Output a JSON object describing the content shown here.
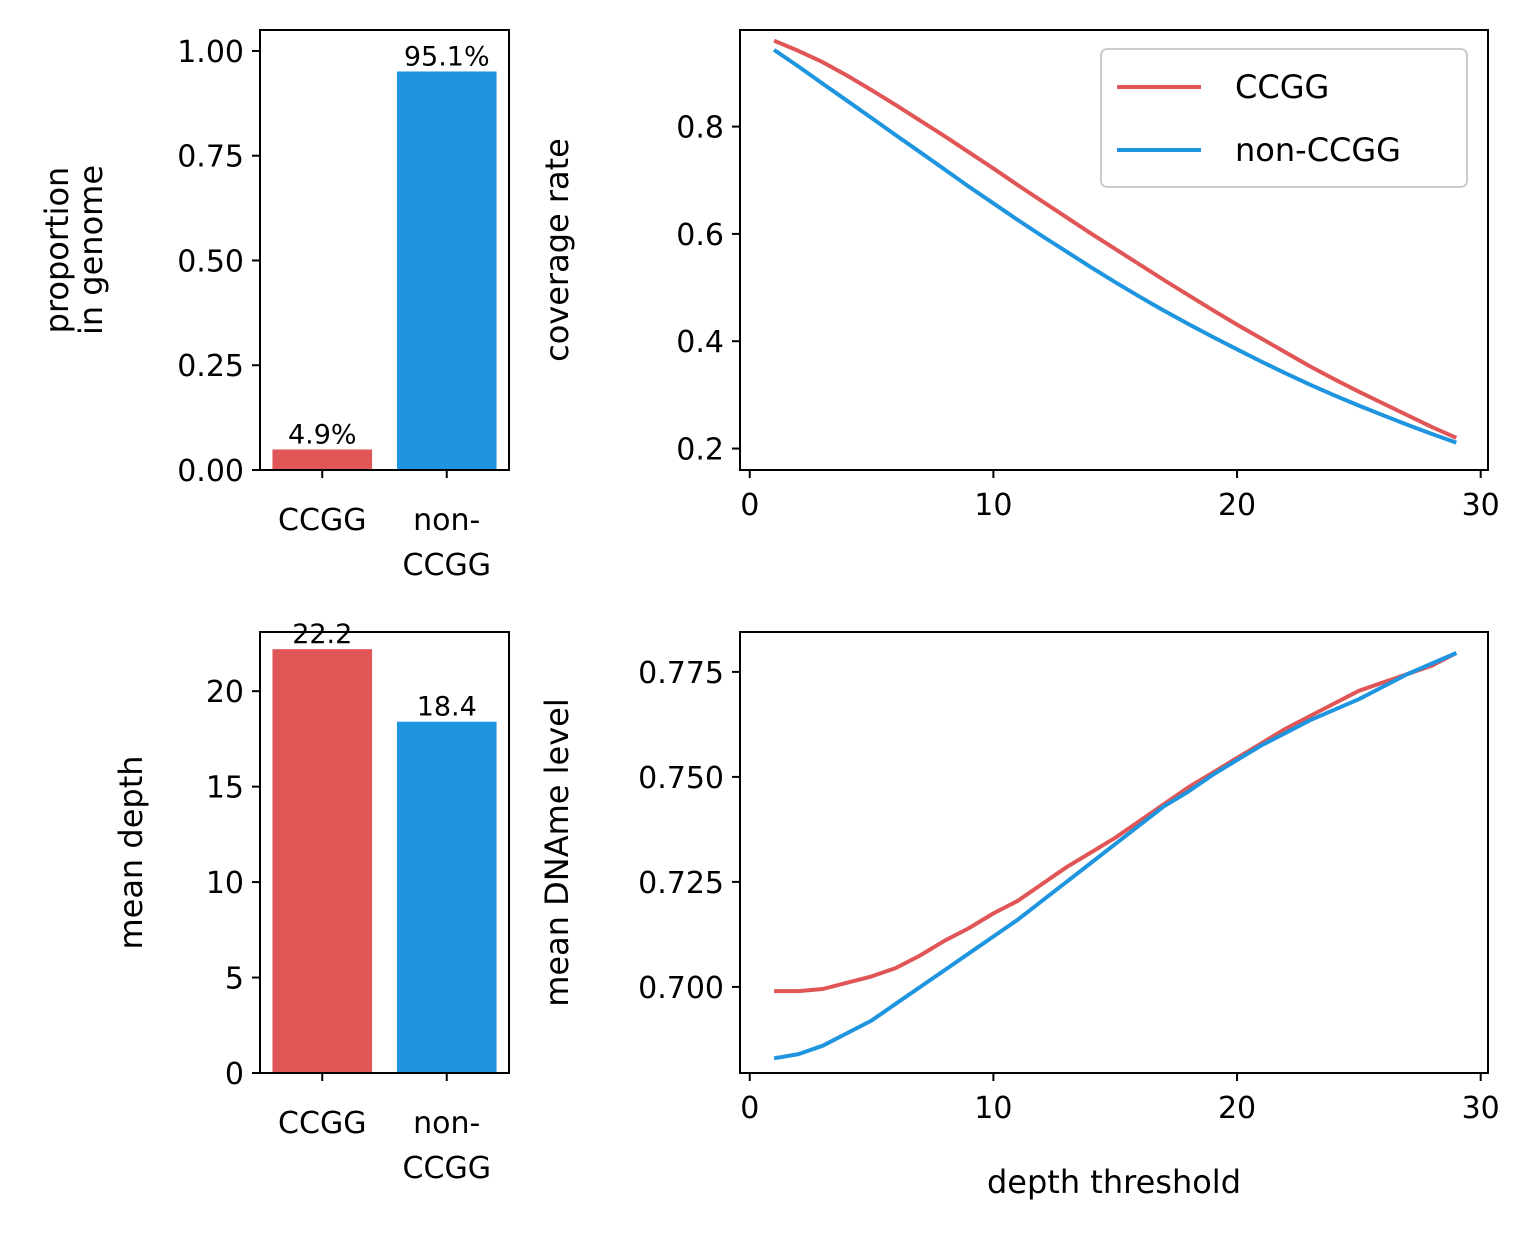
{
  "colors": {
    "ccgg": "#e05555",
    "nonccgg": "#1f95df"
  },
  "chart_data": [
    {
      "id": "proportion",
      "type": "bar",
      "categories": [
        "CCGG",
        "non-\nCCGG"
      ],
      "values": [
        0.049,
        0.951
      ],
      "value_labels": [
        "4.9%",
        "95.1%"
      ],
      "ylabel": [
        "proportion",
        "in genome"
      ],
      "ylim": [
        0,
        1.05
      ],
      "yticks": [
        0,
        0.25,
        0.5,
        0.75,
        1.0
      ],
      "ytick_labels": [
        "0.00",
        "0.25",
        "0.50",
        "0.75",
        "1.00"
      ],
      "bar_colors": [
        "#e05555",
        "#1f95df"
      ]
    },
    {
      "id": "coverage",
      "type": "line",
      "xlabel": "",
      "ylabel": "coverage rate",
      "xlim": [
        -0.4,
        30.3
      ],
      "ylim": [
        0.16,
        0.98
      ],
      "xticks": [
        0,
        10,
        20,
        30
      ],
      "yticks": [
        0.2,
        0.4,
        0.6,
        0.8
      ],
      "ytick_labels": [
        "0.2",
        "0.4",
        "0.6",
        "0.8"
      ],
      "legend": {
        "position": "top-right"
      },
      "x": [
        1,
        2,
        3,
        4,
        5,
        6,
        7,
        8,
        9,
        10,
        11,
        12,
        13,
        14,
        15,
        16,
        17,
        18,
        19,
        20,
        21,
        22,
        23,
        24,
        25,
        26,
        27,
        28,
        29
      ],
      "series": [
        {
          "name": "CCGG",
          "color": "#e05555",
          "values": [
            0.96,
            0.941,
            0.92,
            0.895,
            0.868,
            0.84,
            0.811,
            0.782,
            0.752,
            0.722,
            0.691,
            0.661,
            0.631,
            0.601,
            0.572,
            0.543,
            0.514,
            0.486,
            0.458,
            0.431,
            0.405,
            0.379,
            0.353,
            0.329,
            0.306,
            0.284,
            0.262,
            0.24,
            0.22
          ]
        },
        {
          "name": "non-CCGG",
          "color": "#1f95df",
          "values": [
            0.943,
            0.912,
            0.88,
            0.848,
            0.816,
            0.784,
            0.752,
            0.72,
            0.688,
            0.657,
            0.626,
            0.596,
            0.567,
            0.538,
            0.51,
            0.483,
            0.457,
            0.432,
            0.408,
            0.385,
            0.362,
            0.34,
            0.319,
            0.299,
            0.28,
            0.262,
            0.244,
            0.227,
            0.211
          ]
        }
      ]
    },
    {
      "id": "depth",
      "type": "bar",
      "categories": [
        "CCGG",
        "non-\nCCGG"
      ],
      "values": [
        22.2,
        18.4
      ],
      "value_labels": [
        "22.2",
        "18.4"
      ],
      "ylabel": [
        "mean depth"
      ],
      "ylim": [
        0,
        23.1
      ],
      "yticks": [
        0,
        5,
        10,
        15,
        20
      ],
      "ytick_labels": [
        "0",
        "5",
        "10",
        "15",
        "20"
      ],
      "bar_colors": [
        "#e05555",
        "#1f95df"
      ]
    },
    {
      "id": "dname",
      "type": "line",
      "xlabel": "depth threshold",
      "ylabel": "mean DNAme level",
      "xlim": [
        -0.4,
        30.3
      ],
      "ylim": [
        0.6795,
        0.7845
      ],
      "xticks": [
        0,
        10,
        20,
        30
      ],
      "yticks": [
        0.7,
        0.725,
        0.75,
        0.775
      ],
      "ytick_labels": [
        "0.700",
        "0.725",
        "0.750",
        "0.775"
      ],
      "x": [
        1,
        2,
        3,
        4,
        5,
        6,
        7,
        8,
        9,
        10,
        11,
        12,
        13,
        14,
        15,
        16,
        17,
        18,
        19,
        20,
        21,
        22,
        23,
        24,
        25,
        26,
        27,
        28,
        29
      ],
      "series": [
        {
          "name": "CCGG",
          "color": "#e05555",
          "values": [
            0.699,
            0.699,
            0.6995,
            0.701,
            0.7025,
            0.7045,
            0.7075,
            0.711,
            0.714,
            0.7175,
            0.7205,
            0.7245,
            0.7285,
            0.732,
            0.7355,
            0.7395,
            0.7435,
            0.7475,
            0.751,
            0.7545,
            0.758,
            0.7615,
            0.7645,
            0.7675,
            0.7705,
            0.7725,
            0.7745,
            0.7765,
            0.7795
          ]
        },
        {
          "name": "non-CCGG",
          "color": "#1f95df",
          "values": [
            0.683,
            0.684,
            0.686,
            0.689,
            0.692,
            0.696,
            0.7,
            0.704,
            0.708,
            0.712,
            0.716,
            0.7205,
            0.725,
            0.7295,
            0.734,
            0.7385,
            0.743,
            0.7465,
            0.7505,
            0.754,
            0.7575,
            0.7605,
            0.7635,
            0.766,
            0.7685,
            0.7715,
            0.7745,
            0.777,
            0.7795
          ]
        }
      ]
    }
  ]
}
